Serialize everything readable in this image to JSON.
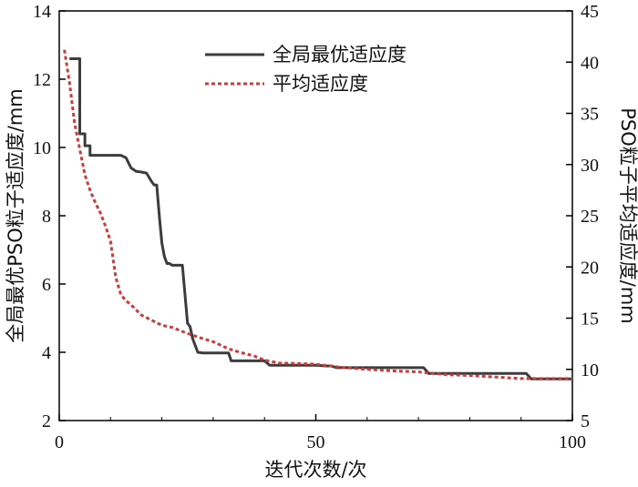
{
  "chart_data": {
    "type": "line",
    "xlabel": "迭代次数/次",
    "ylabel_left": "全局最优PSO粒子适应度/mm",
    "ylabel_right": "PSO粒子平均适应度/mm",
    "xlim": [
      0,
      100
    ],
    "ylim_left": [
      2,
      14
    ],
    "ylim_right": [
      5,
      45
    ],
    "xticks": [
      "0",
      "50",
      "100"
    ],
    "yticks_left": [
      "2",
      "4",
      "6",
      "8",
      "10",
      "12",
      "14"
    ],
    "yticks_right": [
      "5",
      "10",
      "15",
      "20",
      "25",
      "30",
      "35",
      "40",
      "45"
    ],
    "grid": false,
    "legend_position": "top-center",
    "series": [
      {
        "name": "全局最优适应度",
        "axis": "left",
        "style": "solid",
        "color": "#3c3c3c",
        "x": [
          2,
          3,
          4,
          4,
          5,
          5,
          6,
          6,
          8,
          10,
          12,
          13,
          13.5,
          14,
          15,
          16,
          17,
          18,
          18.5,
          19,
          19.5,
          20,
          20.5,
          21,
          21.5,
          22,
          23,
          23.5,
          24,
          25,
          25.5,
          26,
          27,
          28,
          30,
          31,
          32,
          33,
          33.5,
          35,
          38,
          40,
          41,
          45,
          48,
          50,
          52,
          53,
          54,
          55,
          60,
          65,
          70,
          71,
          72,
          75,
          80,
          85,
          90,
          91,
          92,
          95,
          100
        ],
        "y": [
          12.6,
          12.6,
          12.6,
          10.4,
          10.4,
          10.05,
          10.05,
          9.77,
          9.77,
          9.77,
          9.77,
          9.7,
          9.55,
          9.4,
          9.3,
          9.28,
          9.25,
          9.0,
          8.9,
          8.9,
          8.0,
          7.2,
          6.8,
          6.6,
          6.6,
          6.55,
          6.55,
          6.55,
          6.55,
          4.85,
          4.75,
          4.4,
          4.0,
          3.98,
          3.98,
          3.98,
          3.98,
          3.98,
          3.75,
          3.75,
          3.75,
          3.75,
          3.62,
          3.62,
          3.62,
          3.62,
          3.6,
          3.6,
          3.55,
          3.55,
          3.55,
          3.55,
          3.55,
          3.55,
          3.38,
          3.38,
          3.38,
          3.38,
          3.38,
          3.38,
          3.22,
          3.22,
          3.22
        ]
      },
      {
        "name": "平均适应度",
        "axis": "right",
        "style": "dashed",
        "color": "#cd3b3b",
        "x": [
          1,
          2,
          3,
          4,
          5,
          6,
          7,
          8,
          9,
          10,
          11,
          12,
          13,
          14,
          15,
          16,
          18,
          20,
          22,
          25,
          28,
          30,
          33,
          35,
          38,
          40,
          43,
          45,
          50,
          55,
          60,
          65,
          70,
          75,
          80,
          85,
          90,
          95,
          100
        ],
        "y": [
          41.2,
          38.0,
          34.0,
          31.5,
          29.0,
          27.5,
          26.3,
          25.3,
          24.0,
          22.5,
          19.0,
          17.3,
          16.7,
          16.3,
          15.8,
          15.3,
          14.8,
          14.3,
          14.1,
          13.5,
          13.0,
          12.7,
          12.0,
          11.7,
          11.3,
          10.9,
          10.6,
          10.6,
          10.5,
          10.2,
          10.0,
          9.85,
          9.75,
          9.5,
          9.4,
          9.25,
          9.1,
          9.1,
          9.1
        ]
      }
    ]
  }
}
